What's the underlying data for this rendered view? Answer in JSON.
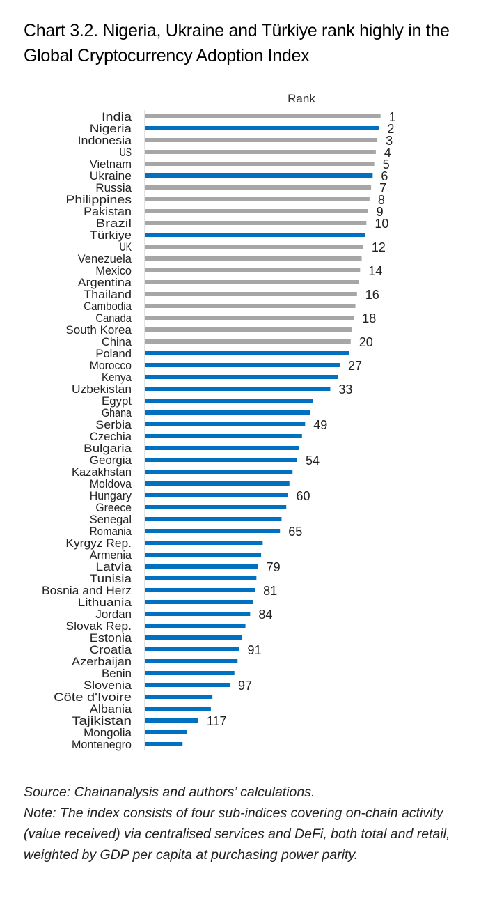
{
  "title": "Chart 3.2. Nigeria, Ukraine and Türkiye rank highly in the Global Cryptocurrency Adoption Index",
  "source": "Source: Chainanalysis and authors’ calculations.",
  "note": "Note: The index consists of four sub-indices covering on-chain activity (value received) via centralised services and DeFi, both total and retail, weighted by GDP per capita at purchasing power parity.",
  "colors": {
    "highlight": "#0070C0",
    "other": "#A6A6A6",
    "axis": "#D9D9D9"
  },
  "chart_data": {
    "type": "bar",
    "orientation": "horizontal",
    "title": "Chart 3.2. Nigeria, Ukraine and Türkiye rank highly in the Global Cryptocurrency Adoption Index",
    "series_label": "Rank",
    "note": "Longer bar = higher rank (rank 1 longest); unlabeled ranks estimated from bar lengths",
    "axis_reference_rank": 150.6,
    "categories": [
      "India",
      "Nigeria",
      "Indonesia",
      "US",
      "Vietnam",
      "Ukraine",
      "Russia",
      "Philippines",
      "Pakistan",
      "Brazil",
      "Türkiye",
      "UK",
      "Venezuela",
      "Mexico",
      "Argentina",
      "Thailand",
      "Cambodia",
      "Canada",
      "South Korea",
      "China",
      "Poland",
      "Morocco",
      "Kenya",
      "Uzbekistan",
      "Egypt",
      "Ghana",
      "Serbia",
      "Czechia",
      "Bulgaria",
      "Georgia",
      "Kazakhstan",
      "Moldova",
      "Hungary",
      "Greece",
      "Senegal",
      "Romania",
      "Kyrgyz Rep.",
      "Armenia",
      "Latvia",
      "Tunisia",
      "Bosnia and Herz",
      "Lithuania",
      "Jordan",
      "Slovak Rep.",
      "Estonia",
      "Croatia",
      "Azerbaijan",
      "Benin",
      "Slovenia",
      "Côte d'Ivoire",
      "Albania",
      "Tajikistan",
      "Mongolia",
      "Montenegro"
    ],
    "values": [
      1,
      2,
      3,
      4,
      5,
      6,
      7,
      8,
      9,
      10,
      11,
      12,
      13,
      14,
      15,
      16,
      17,
      18,
      19,
      20,
      21,
      27,
      28,
      33,
      44,
      46,
      49,
      51,
      53,
      54,
      57,
      59,
      60,
      61,
      64,
      65,
      76,
      77,
      79,
      80,
      81,
      82,
      84,
      87,
      89,
      91,
      92,
      94,
      97,
      108,
      109,
      117,
      124,
      127
    ],
    "highlighted": [
      false,
      true,
      false,
      false,
      false,
      true,
      false,
      false,
      false,
      false,
      true,
      false,
      false,
      false,
      false,
      false,
      false,
      false,
      false,
      false,
      true,
      true,
      true,
      true,
      true,
      true,
      true,
      true,
      true,
      true,
      true,
      true,
      true,
      true,
      true,
      true,
      true,
      true,
      true,
      true,
      true,
      true,
      true,
      true,
      true,
      true,
      true,
      true,
      true,
      true,
      true,
      true,
      true,
      true
    ],
    "labeled": [
      true,
      true,
      true,
      true,
      true,
      true,
      true,
      true,
      true,
      true,
      false,
      true,
      false,
      true,
      false,
      true,
      false,
      true,
      false,
      true,
      false,
      true,
      false,
      true,
      false,
      false,
      true,
      false,
      false,
      true,
      false,
      false,
      true,
      false,
      false,
      true,
      false,
      false,
      true,
      false,
      true,
      false,
      true,
      false,
      false,
      true,
      false,
      false,
      true,
      false,
      false,
      true,
      false,
      false
    ]
  }
}
